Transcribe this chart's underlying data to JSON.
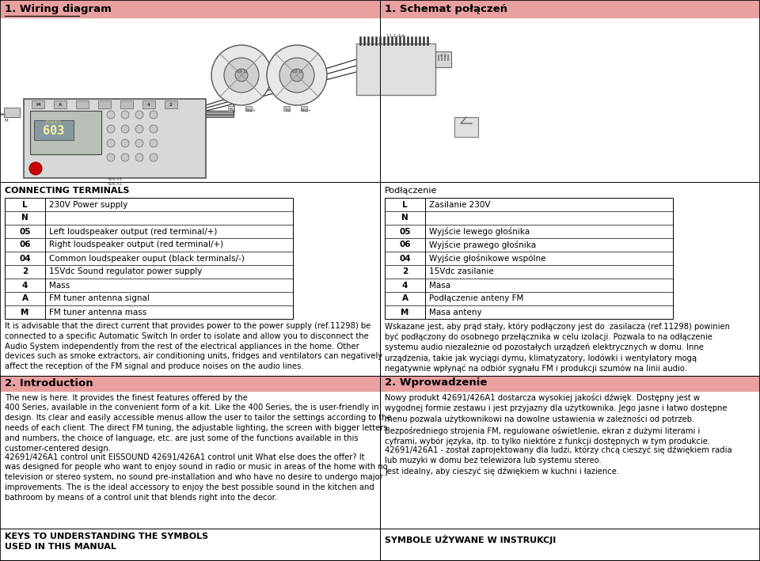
{
  "title_left": "1. Wiring diagram",
  "title_right": "1. Schemat połączeń",
  "header_bg": "#e8a0a0",
  "page_bg": "#ffffff",
  "border_color": "#000000",
  "section2_title_left": "2. Introduction",
  "section2_title_right": "2. Wprowadzenie",
  "connecting_terminals_header": "CONNECTING TERMINALS",
  "podlaczenie_header": "Podłączenie",
  "terminals_left": [
    [
      "L",
      "230V Power supply"
    ],
    [
      "N",
      ""
    ],
    [
      "05",
      "Left loudspeaker output (red terminal/+)"
    ],
    [
      "06",
      "Right loudspeaker output (red terminal/+)"
    ],
    [
      "04",
      "Common loudspeaker ouput (black terminals/-)"
    ],
    [
      "2",
      "15Vdc Sound regulator power supply"
    ],
    [
      "4",
      "Mass"
    ],
    [
      "A",
      "FM tuner antenna signal"
    ],
    [
      "M",
      "FM tuner antenna mass"
    ]
  ],
  "terminals_right": [
    [
      "L",
      "Zasilanie 230V"
    ],
    [
      "N",
      ""
    ],
    [
      "05",
      "Wyjście lewego głośnika"
    ],
    [
      "06",
      "Wyjście prawego głośnika"
    ],
    [
      "04",
      "Wyjście głośnikowe wspólne"
    ],
    [
      "2",
      "15Vdc zasilanie"
    ],
    [
      "4",
      "Masa"
    ],
    [
      "A",
      "Podłączenie anteny FM"
    ],
    [
      "M",
      "Masa anteny"
    ]
  ],
  "paragraph_left": "It is advisable that the direct current that provides power to the power supply (ref.11298) be\nconnected to a specific Automatic Switch In order to isolate and allow you to disconnect the\nAudio System independently from the rest of the electrical appliances in the home. Other\ndevices such as smoke extractors, air conditioning units, fridges and ventilators can negatively\naffect the reception of the FM signal and produce noises on the audio lines.",
  "paragraph_right": "Wskazane jest, aby prąd stały, który podłączony jest do  zasilacza (ref.11298) powinien\nbyć podłączony do osobnego przełącznika w celu izolacji. Pozwala to na odłączenie\nsystemu audio niezależnie od pozostałych urządzeń elektrycznych w domu. Inne\nurządzenia, takie jak wyciągi dymu, klimatyzatory, lodówki i wentylatory mogą\nnegatywnie wpłynąć na odbiór sygnału FM i produkcji szumów na linii audio.",
  "intro_left_p1": "The new is here. It provides the finest features offered by the\n400 Series, available in the convenient form of a kit. Like the 400 Series, the is user-friendly in\ndesign. Its clear and easily accessible menus allow the user to tailor the settings according to the\nneeds of each client. The direct FM tuning, the adjustable lighting, the screen with bigger letters\nand numbers, the choice of language, etc. are just some of the functions available in this\ncustomer-centered design.",
  "intro_left_p2": "42691/426A1 control unit EISSOUND 42691/426A1 control unit What else does the offer? It\nwas designed for people who want to enjoy sound in radio or music in areas of the home with no\ntelevision or stereo system, no sound pre-installation and who have no desire to undergo major\nimprovements. The is the ideal accessory to enjoy the best possible sound in the kitchen and\nbathroom by means of a control unit that blends right into the decor.",
  "intro_right_p1": "Nowy produkt 42691/426A1 dostarcza wysokiej jakości dźwięk. Dostępny jest w\nwygodnej formie zestawu i jest przyjazny dla użytkownika. Jego jasne i łatwo dostępne\nmenu pozwala użytkownikowi na dowolne ustawienia w zależności od potrzeb.\nBezpośredniego strojenia FM, regulowane oświetlenie, ekran z dużymi literami i\ncyframi, wybór języka, itp. to tylko niektóre z funkcji dostępnych w tym produkcie.",
  "intro_right_p2": "42691/426A1 - został zaprojektowany dla ludzi, którzy chcą cieszyć się dźwiękiem radia\nlub muzyki w domu bez telewizora lub systemu stereo.\nJest idealny, aby cieszyć się dźwiękiem w kuchni i łazience.",
  "footer_left_line1": "KEYS TO UNDERSTANDING THE SYMBOLS",
  "footer_left_line2": "USED IN THIS MANUAL",
  "footer_right": "SYMBOLE UŻYWANE W INSTRUKCJI",
  "diagram_bg": "#f8f8f8"
}
